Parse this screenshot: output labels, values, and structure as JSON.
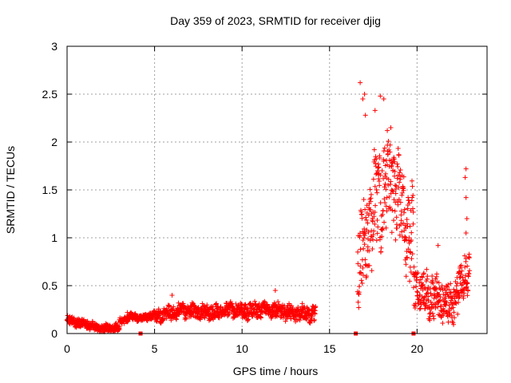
{
  "chart_data": {
    "type": "scatter",
    "title": "Day 359 of 2023, SRMTID for receiver djig",
    "xlabel": "GPS time / hours",
    "ylabel": "SRMTID / TECUs",
    "xlim": [
      0,
      24
    ],
    "ylim": [
      0,
      3
    ],
    "x_ticks": [
      0,
      5,
      10,
      15,
      20
    ],
    "x_tick_labels": [
      "0",
      "5",
      "10",
      "15",
      "20"
    ],
    "y_ticks": [
      0,
      0.5,
      1,
      1.5,
      2,
      2.5,
      3
    ],
    "y_tick_labels": [
      "0",
      "0.5",
      "1",
      "1.5",
      "2",
      "2.5",
      "3"
    ],
    "grid": true,
    "marker": "+",
    "color": "#ff0000",
    "series": [
      {
        "name": "SRMTID",
        "segments": [
          {
            "x_start": 0.0,
            "x_end": 3.0,
            "baseline": [
              0.14,
              0.1,
              0.05,
              0.06
            ],
            "spread": 0.05
          },
          {
            "x_start": 3.0,
            "x_end": 5.0,
            "baseline": [
              0.12,
              0.18,
              0.16,
              0.2
            ],
            "spread": 0.04
          },
          {
            "x_start": 5.0,
            "x_end": 10.0,
            "baseline": [
              0.18,
              0.24,
              0.22,
              0.26
            ],
            "spread": 0.08
          },
          {
            "x_start": 10.0,
            "x_end": 14.2,
            "baseline": [
              0.22,
              0.26,
              0.22,
              0.2
            ],
            "spread": 0.09
          },
          {
            "x_start": 16.6,
            "x_end": 19.8,
            "baseline": [
              0.7,
              1.4,
              1.6,
              0.9
            ],
            "spread": 0.55
          },
          {
            "x_start": 19.8,
            "x_end": 23.0,
            "baseline": [
              0.5,
              0.4,
              0.3,
              0.7
            ],
            "spread": 0.25
          }
        ],
        "outliers": [
          {
            "x": 16.75,
            "y": 2.62
          },
          {
            "x": 16.9,
            "y": 2.45
          },
          {
            "x": 17.0,
            "y": 2.5
          },
          {
            "x": 17.05,
            "y": 2.28
          },
          {
            "x": 17.9,
            "y": 2.48
          },
          {
            "x": 18.1,
            "y": 2.45
          },
          {
            "x": 18.3,
            "y": 2.12
          },
          {
            "x": 18.5,
            "y": 2.15
          },
          {
            "x": 17.6,
            "y": 2.33
          },
          {
            "x": 22.8,
            "y": 1.72
          },
          {
            "x": 22.75,
            "y": 1.63
          },
          {
            "x": 22.8,
            "y": 1.42
          },
          {
            "x": 22.85,
            "y": 1.2
          },
          {
            "x": 22.8,
            "y": 1.05
          },
          {
            "x": 21.2,
            "y": 0.92
          },
          {
            "x": 3.45,
            "y": 0.22
          },
          {
            "x": 6.0,
            "y": 0.4
          },
          {
            "x": 11.9,
            "y": 0.45
          }
        ],
        "zero_markers": [
          4.2,
          16.5,
          19.8
        ]
      }
    ]
  }
}
